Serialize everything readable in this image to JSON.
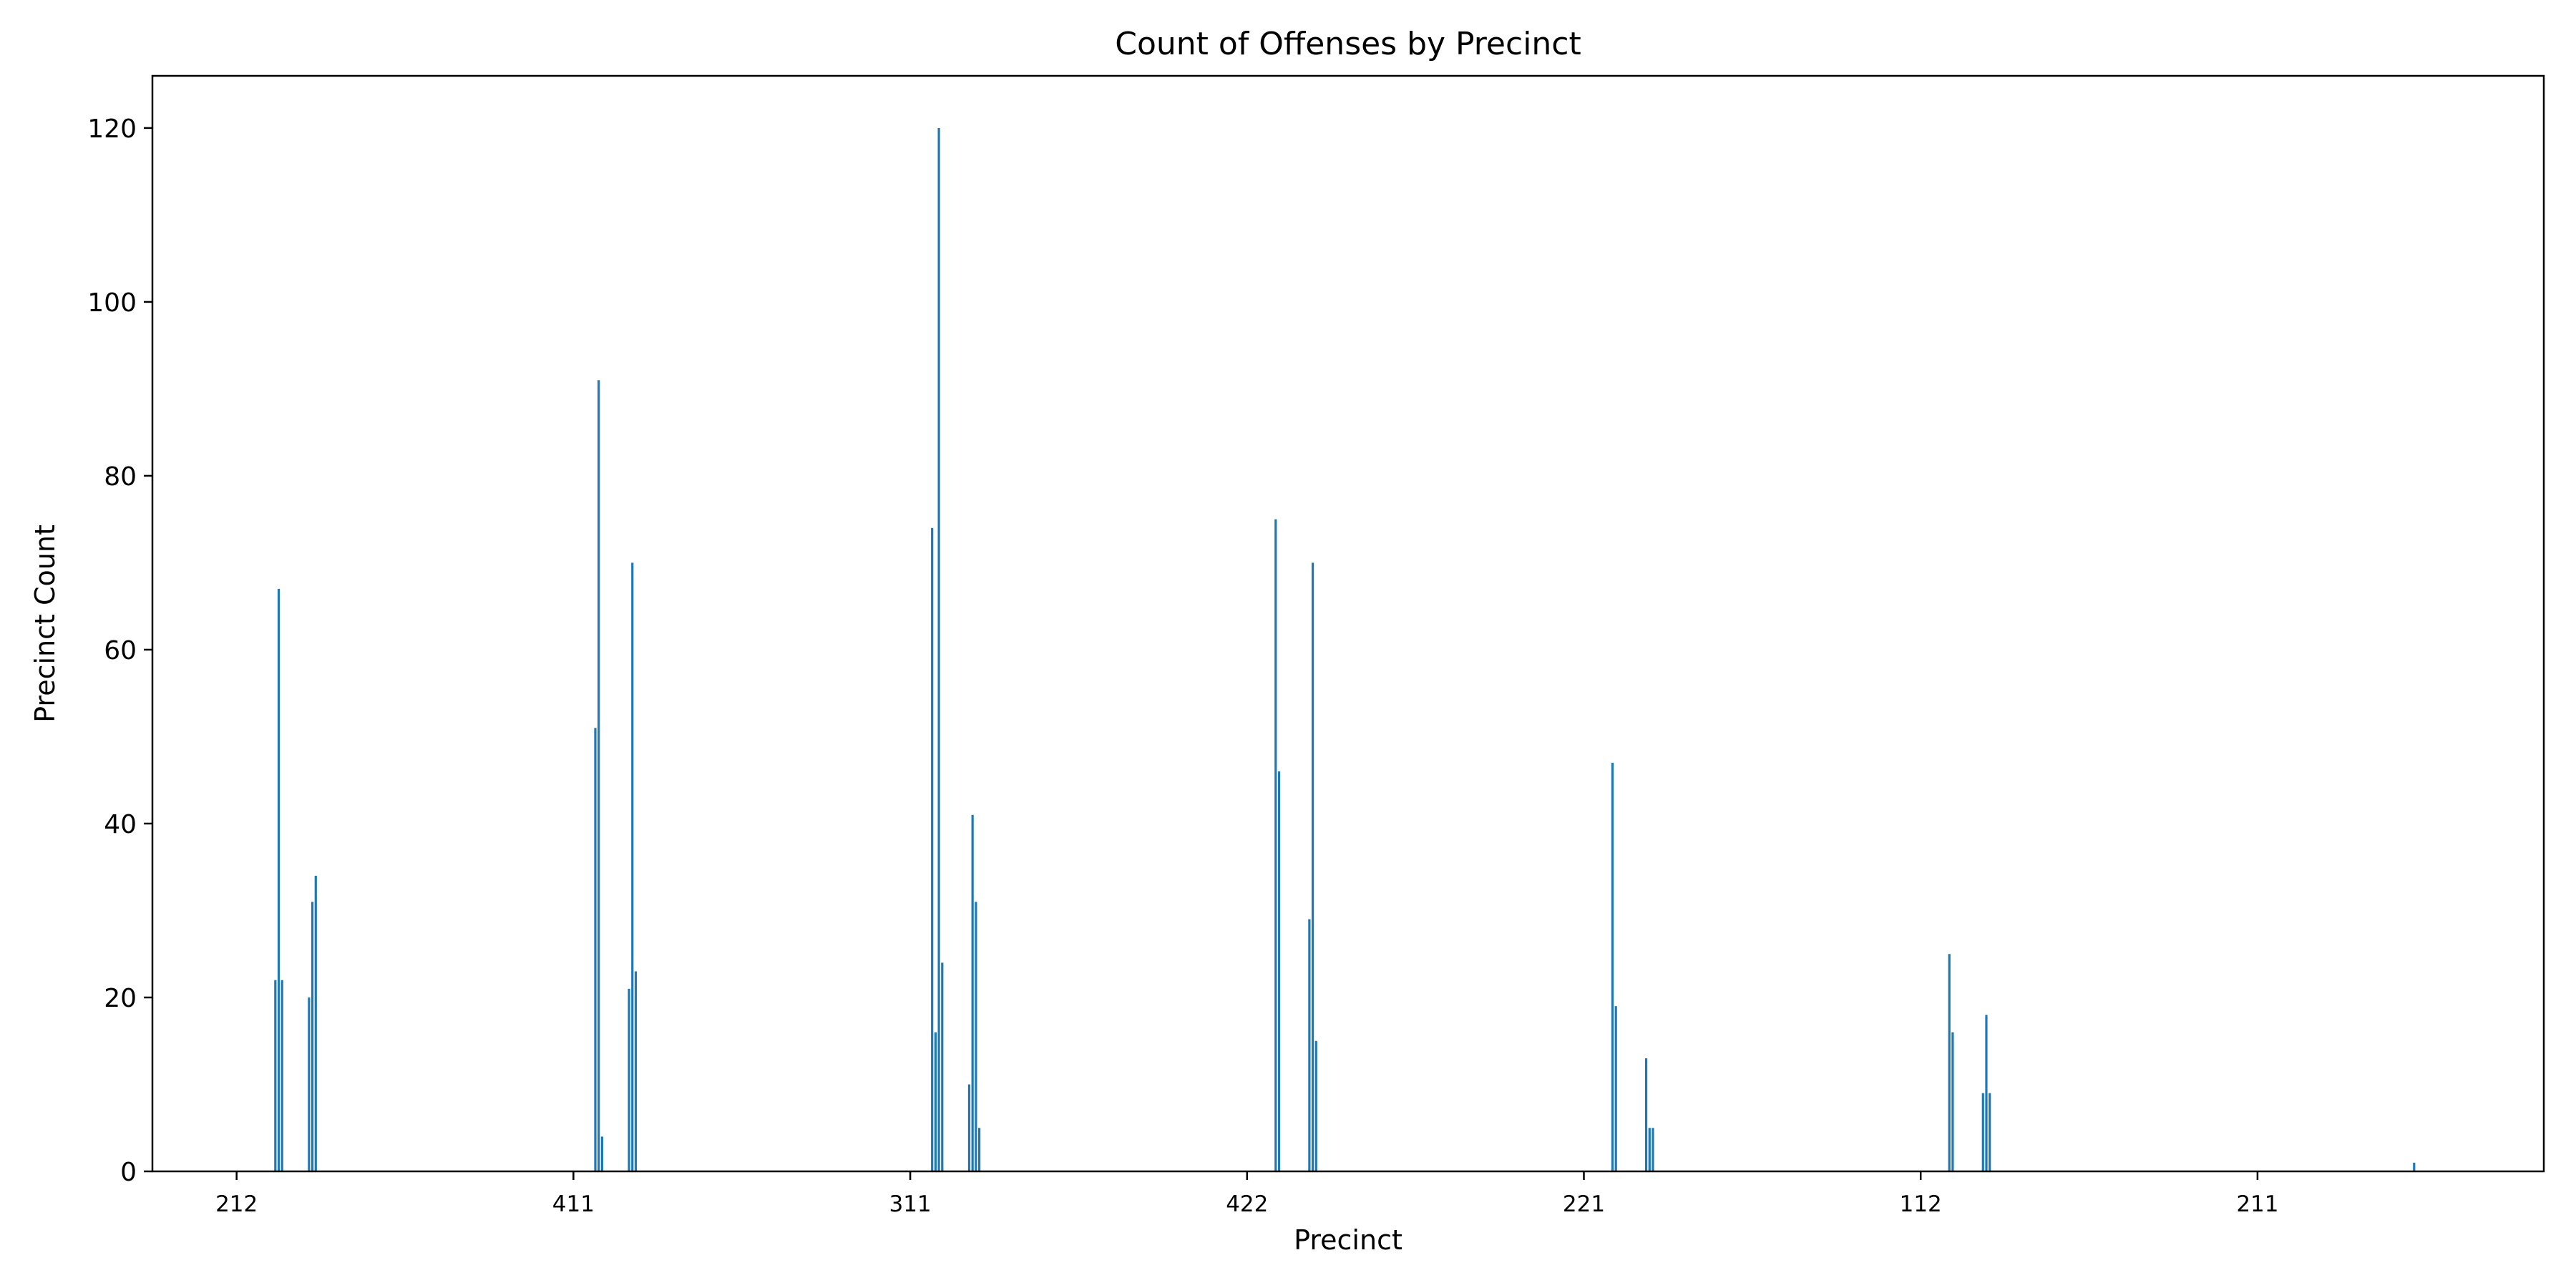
{
  "chart_data": {
    "type": "bar",
    "title": "Count of Offenses by Precinct",
    "xlabel": "Precinct",
    "ylabel": "Precinct Count",
    "ylim": [
      0,
      126
    ],
    "yticks": [
      0,
      20,
      40,
      60,
      80,
      100,
      120
    ],
    "xlim": [
      -0.5,
      70.5
    ],
    "xtick_positions": [
      2,
      12,
      22,
      32,
      42,
      52,
      62
    ],
    "xtick_labels": [
      "212",
      "411",
      "311",
      "422",
      "221",
      "112",
      "211"
    ],
    "bar_color": "#1f77b4",
    "bars": [
      {
        "x": 3.15,
        "value": 22
      },
      {
        "x": 3.25,
        "value": 67
      },
      {
        "x": 3.35,
        "value": 22
      },
      {
        "x": 4.15,
        "value": 20
      },
      {
        "x": 4.25,
        "value": 31
      },
      {
        "x": 4.35,
        "value": 34
      },
      {
        "x": 12.65,
        "value": 51
      },
      {
        "x": 12.75,
        "value": 91
      },
      {
        "x": 12.85,
        "value": 4
      },
      {
        "x": 13.65,
        "value": 21
      },
      {
        "x": 13.75,
        "value": 70
      },
      {
        "x": 13.85,
        "value": 23
      },
      {
        "x": 22.65,
        "value": 74
      },
      {
        "x": 22.75,
        "value": 16
      },
      {
        "x": 22.85,
        "value": 120
      },
      {
        "x": 22.95,
        "value": 24
      },
      {
        "x": 23.75,
        "value": 10
      },
      {
        "x": 23.85,
        "value": 41
      },
      {
        "x": 23.95,
        "value": 31
      },
      {
        "x": 24.05,
        "value": 5
      },
      {
        "x": 32.85,
        "value": 75
      },
      {
        "x": 32.95,
        "value": 46
      },
      {
        "x": 33.85,
        "value": 29
      },
      {
        "x": 33.95,
        "value": 70
      },
      {
        "x": 34.05,
        "value": 15
      },
      {
        "x": 42.85,
        "value": 47
      },
      {
        "x": 42.95,
        "value": 19
      },
      {
        "x": 43.85,
        "value": 13
      },
      {
        "x": 43.95,
        "value": 5
      },
      {
        "x": 44.05,
        "value": 5
      },
      {
        "x": 52.85,
        "value": 25
      },
      {
        "x": 52.95,
        "value": 16
      },
      {
        "x": 53.85,
        "value": 9
      },
      {
        "x": 53.95,
        "value": 18
      },
      {
        "x": 54.05,
        "value": 9
      },
      {
        "x": 66.65,
        "value": 1
      }
    ]
  }
}
